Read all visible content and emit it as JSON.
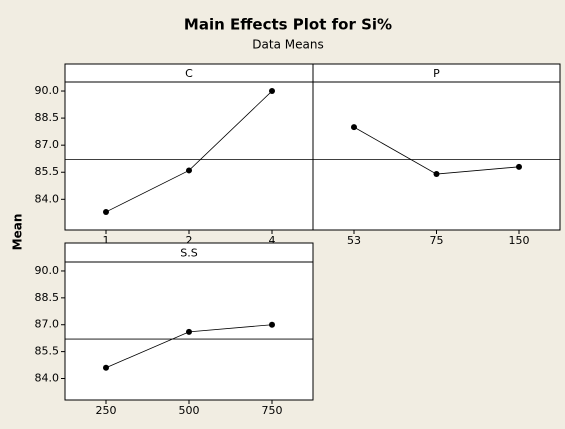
{
  "title": "Main Effects Plot for Si%",
  "subtitle": "Data Means",
  "ylabel": "Mean",
  "chart_data": [
    {
      "type": "line",
      "title": "C",
      "categories": [
        "1",
        "2",
        "4"
      ],
      "values": [
        83.3,
        85.6,
        90.0
      ],
      "color": "#000000",
      "reference_line": 86.2,
      "ylim": [
        82.3,
        90.5
      ],
      "yticks": [
        {
          "value": 84.0,
          "label": "84.0"
        },
        85.5,
        {
          "value": 87.0,
          "label": "87.0"
        },
        88.5,
        {
          "value": 90.0,
          "label": "90.0"
        }
      ]
    },
    {
      "type": "line",
      "title": "P",
      "categories": [
        "53",
        "75",
        "150"
      ],
      "values": [
        88.0,
        85.4,
        85.8
      ],
      "color": "#000000",
      "reference_line": 86.2,
      "ylim": [
        82.3,
        90.5
      ]
    },
    {
      "type": "line",
      "title": "S.S",
      "categories": [
        "250",
        "500",
        "750"
      ],
      "values": [
        84.6,
        86.6,
        87.0
      ],
      "color": "#000000",
      "reference_line": 86.2,
      "ylim": [
        82.8,
        90.5
      ],
      "yticks": [
        {
          "value": 84.0,
          "label": "84.0"
        },
        85.5,
        {
          "value": 87.0,
          "label": "87.0"
        },
        88.5,
        {
          "value": 90.0,
          "label": "90.0"
        }
      ]
    }
  ]
}
